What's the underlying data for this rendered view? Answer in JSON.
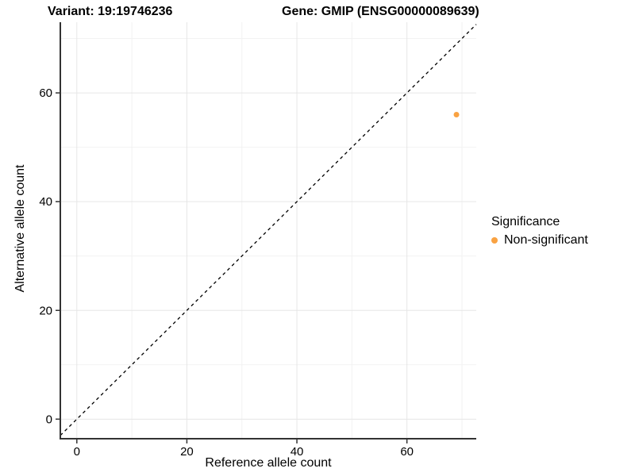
{
  "titles": {
    "variant": "Variant: 19:19746236",
    "gene": "Gene: GMIP (ENSG00000089639)"
  },
  "chart_data": {
    "type": "scatter",
    "title": "Variant: 19:19746236    Gene: GMIP (ENSG00000089639)",
    "xlabel": "Reference allele count",
    "ylabel": "Alternative allele count",
    "xlim": [
      -3.0,
      72.6
    ],
    "ylim": [
      -3.6,
      73.0
    ],
    "x_major_ticks": [
      0,
      20,
      40,
      60
    ],
    "x_minor_ticks": [
      10,
      30,
      50,
      70
    ],
    "y_major_ticks": [
      0,
      20,
      40,
      60
    ],
    "y_minor_ticks": [
      10,
      30,
      50,
      70
    ],
    "grid": "major and minor gridlines on, white background",
    "identity_line": {
      "slope": 1,
      "intercept": 0,
      "style": "dashed",
      "color": "#000000"
    },
    "series": [
      {
        "name": "Non-significant",
        "color": "#F9A242",
        "points": [
          {
            "x": 69,
            "y": 56
          }
        ]
      }
    ],
    "legend": {
      "title": "Significance",
      "position": "right",
      "items": [
        {
          "label": "Non-significant",
          "color": "#F9A242"
        }
      ]
    }
  },
  "colors": {
    "background": "#ffffff",
    "grid_major": "#e6e6e6",
    "grid_minor": "#f2f2f2",
    "axis_line": "#333333",
    "text": "#000000",
    "point": "#F9A242"
  }
}
